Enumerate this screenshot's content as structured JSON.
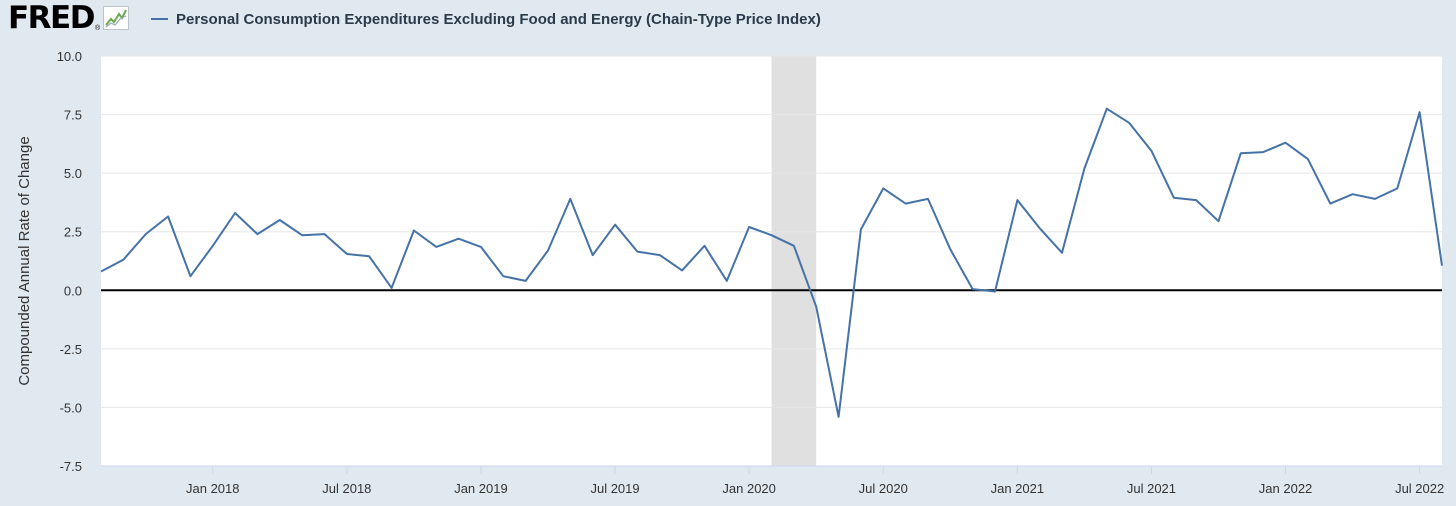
{
  "brand": {
    "logo_text": "FRED",
    "logo_mark": "®"
  },
  "chart_data": {
    "type": "line",
    "title": "Personal Consumption Expenditures Excluding Food and Energy (Chain-Type Price Index)",
    "ylabel": "Compounded Annual Rate of Change",
    "xlabel": "",
    "ylim": [
      -7.5,
      10.0
    ],
    "yticks": [
      "-7.5",
      "-5.0",
      "-2.5",
      "0.0",
      "2.5",
      "5.0",
      "7.5",
      "10.0"
    ],
    "xticks": [
      "Jan 2018",
      "Jul 2018",
      "Jan 2019",
      "Jul 2019",
      "Jan 2020",
      "Jul 2020",
      "Jan 2021",
      "Jul 2021",
      "Jan 2022",
      "Jul 2022"
    ],
    "x_start": "Aug 2017",
    "x_end": "Aug 2022",
    "recession": {
      "start": "Feb 2020",
      "end": "Apr 2020"
    },
    "series": [
      {
        "name": "Personal Consumption Expenditures Excluding Food and Energy (Chain-Type Price Index)",
        "color": "#4572a7",
        "values": [
          0.8,
          1.3,
          2.4,
          3.15,
          0.6,
          1.9,
          3.3,
          2.4,
          3.0,
          2.35,
          2.4,
          1.55,
          1.45,
          0.1,
          2.55,
          1.85,
          2.2,
          1.85,
          0.6,
          0.4,
          1.7,
          3.9,
          1.5,
          2.8,
          1.65,
          1.5,
          0.85,
          1.9,
          0.4,
          2.7,
          2.35,
          1.9,
          -0.7,
          -5.4,
          2.6,
          4.35,
          3.7,
          3.9,
          1.75,
          0.05,
          -0.05,
          3.85,
          2.65,
          1.6,
          5.2,
          7.75,
          7.15,
          5.95,
          3.95,
          3.85,
          2.95,
          5.85,
          5.9,
          6.3,
          5.6,
          3.7,
          4.1,
          3.9,
          4.35,
          7.6,
          1.05
        ]
      }
    ],
    "line_color": "#4572a7",
    "zero_line_color": "#000000",
    "recession_color": "#e0e0e0"
  }
}
